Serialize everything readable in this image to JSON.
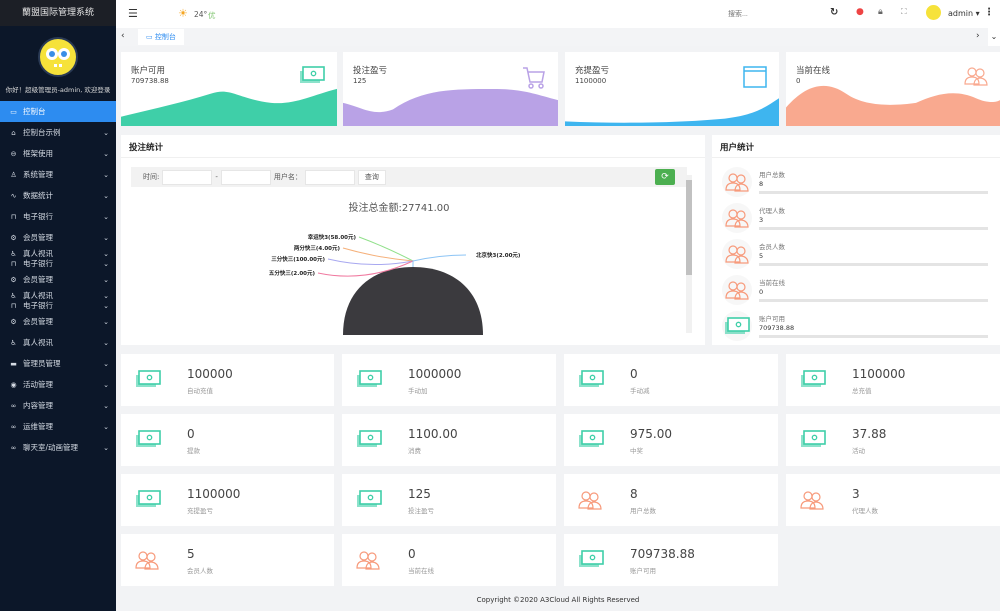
{
  "sidebar": {
    "title": "蘭盟国际管理系统",
    "welcome": "你好！超级管理员-admin, 欢迎登录",
    "items": [
      {
        "label": "控制台",
        "icon": "monitor-icon",
        "active": true
      },
      {
        "label": "控制台示例",
        "icon": "home-icon"
      },
      {
        "label": "框架使用",
        "icon": "frame-icon"
      },
      {
        "label": "系统管理",
        "icon": "user-icon"
      },
      {
        "label": "数据统计",
        "icon": "pulse-icon"
      },
      {
        "label": "电子银行",
        "icon": "bank-icon"
      },
      {
        "label": "会员管理",
        "icon": "gear-icon"
      },
      {
        "label": "真人视讯",
        "icon": "person-icon",
        "label2": "电子银行"
      },
      {
        "label": "会员管理",
        "icon": "gear-icon"
      },
      {
        "label": "真人视讯",
        "icon": "person-icon",
        "label2": "电子银行"
      },
      {
        "label": "会员管理",
        "icon": "gear-icon"
      },
      {
        "label": "真人视讯",
        "icon": "person-icon"
      },
      {
        "label": "管理员管理",
        "icon": "list-icon"
      },
      {
        "label": "活动管理",
        "icon": "target-icon"
      },
      {
        "label": "内容管理",
        "icon": "link-icon"
      },
      {
        "label": "运维管理",
        "icon": "link-icon"
      },
      {
        "label": "聊天室/动画管理",
        "icon": "link-icon"
      }
    ]
  },
  "header": {
    "weather_temp": "24°",
    "weather_quality": "优",
    "search_placeholder": "搜索...",
    "user": "admin"
  },
  "tabs": [
    {
      "label": "控制台"
    }
  ],
  "top_cards": [
    {
      "title": "账户可用",
      "value": "709738.88",
      "color": "#3fcfa8",
      "icon": "money-icon"
    },
    {
      "title": "投注盈亏",
      "value": "125",
      "color": "#b9a2e6",
      "icon": "cart-icon"
    },
    {
      "title": "充提盈亏",
      "value": "1100000",
      "color": "#3eb5ef",
      "icon": "window-icon"
    },
    {
      "title": "当前在线",
      "value": "0",
      "color": "#f9a98f",
      "icon": "users-icon"
    }
  ],
  "bet_panel": {
    "title": "投注统计",
    "filter": {
      "time_label": "时间:",
      "separator": "-",
      "user_label": "用户名：",
      "query": "查询"
    },
    "chart_data": {
      "type": "pie",
      "title": "投注总金额:27741.00",
      "slices": [
        {
          "label": "幸运快3(58.00元)",
          "value": 58,
          "color": "#90e08a"
        },
        {
          "label": "两分快三(4.00元)",
          "value": 4,
          "color": "#f5b07a"
        },
        {
          "label": "三分快三(100.00元)",
          "value": 100,
          "color": "#a8a8f0"
        },
        {
          "label": "五分快三(2.00元)",
          "value": 2,
          "color": "#f07aa0"
        },
        {
          "label": "北京快3(2.00元)",
          "value": 2,
          "color": "#8cc4f5"
        }
      ],
      "main_slice_color": "#3b3a3e"
    }
  },
  "user_panel": {
    "title": "用户统计",
    "items": [
      {
        "label": "用户总数",
        "value": "8",
        "icon": "users-icon"
      },
      {
        "label": "代理人数",
        "value": "3",
        "icon": "users-icon"
      },
      {
        "label": "会员人数",
        "value": "5",
        "icon": "users-icon"
      },
      {
        "label": "当前在线",
        "value": "0",
        "icon": "users-icon"
      },
      {
        "label": "账户可用",
        "value": "709738.88",
        "icon": "money-icon"
      }
    ]
  },
  "stats": [
    {
      "value": "100000",
      "label": "自动充值",
      "icon": "money-icon"
    },
    {
      "value": "1000000",
      "label": "手动加",
      "icon": "money-icon"
    },
    {
      "value": "0",
      "label": "手动减",
      "icon": "money-icon"
    },
    {
      "value": "1100000",
      "label": "总充值",
      "icon": "money-icon"
    },
    {
      "value": "0",
      "label": "提款",
      "icon": "money-icon"
    },
    {
      "value": "1100.00",
      "label": "消费",
      "icon": "money-icon"
    },
    {
      "value": "975.00",
      "label": "中奖",
      "icon": "money-icon"
    },
    {
      "value": "37.88",
      "label": "活动",
      "icon": "money-icon"
    },
    {
      "value": "1100000",
      "label": "充提盈亏",
      "icon": "money-icon"
    },
    {
      "value": "125",
      "label": "投注盈亏",
      "icon": "money-icon"
    },
    {
      "value": "8",
      "label": "用户总数",
      "icon": "users-icon"
    },
    {
      "value": "3",
      "label": "代理人数",
      "icon": "users-icon"
    },
    {
      "value": "5",
      "label": "会员人数",
      "icon": "users-icon"
    },
    {
      "value": "0",
      "label": "当前在线",
      "icon": "users-icon"
    },
    {
      "value": "709738.88",
      "label": "账户可用",
      "icon": "money-icon"
    }
  ],
  "footer": "Copyright ©2020 A3Cloud All Rights Reserved"
}
